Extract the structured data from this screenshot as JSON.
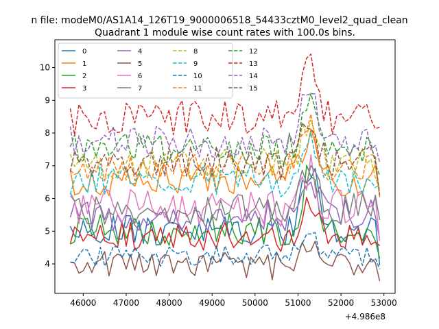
{
  "chart_data": {
    "type": "line",
    "suptitle": "n file: modeM0/AS1A14_126T19_9000006518_54433cztM0_level2_quad_clean",
    "title": "Quadrant 1 module wise count rates with 100.0s bins.",
    "xlabel": "",
    "ylabel": "",
    "x_offset_label": "+4.986e8",
    "x_range": [
      45700,
      52900
    ],
    "x_step": 100,
    "xlim": [
      45340,
      53260
    ],
    "ylim": [
      3.1,
      10.85
    ],
    "xticks": [
      "46000",
      "47000",
      "48000",
      "49000",
      "50000",
      "51000",
      "52000",
      "53000"
    ],
    "yticks": [
      "4",
      "5",
      "6",
      "7",
      "8",
      "9",
      "10"
    ],
    "legend_position": "top-left",
    "grid": false,
    "series": [
      {
        "name": "0",
        "color": "#1f77b4",
        "dash": "solid",
        "base": 5.0,
        "amp": 0.22,
        "peak": 2.2,
        "seed": 1
      },
      {
        "name": "1",
        "color": "#ff7f0e",
        "dash": "solid",
        "base": 6.55,
        "amp": 0.22,
        "peak": 1.6,
        "seed": 2
      },
      {
        "name": "2",
        "color": "#2ca02c",
        "dash": "solid",
        "base": 5.05,
        "amp": 0.22,
        "peak": 1.8,
        "seed": 3
      },
      {
        "name": "3",
        "color": "#d62728",
        "dash": "solid",
        "base": 4.85,
        "amp": 0.2,
        "peak": 1.0,
        "seed": 4
      },
      {
        "name": "4",
        "color": "#9467bd",
        "dash": "solid",
        "base": 5.5,
        "amp": 0.22,
        "peak": 1.4,
        "seed": 5
      },
      {
        "name": "5",
        "color": "#8c564b",
        "dash": "solid",
        "base": 3.95,
        "amp": 0.2,
        "peak": 0.9,
        "seed": 6
      },
      {
        "name": "6",
        "color": "#e377c2",
        "dash": "solid",
        "base": 5.75,
        "amp": 0.25,
        "peak": 1.2,
        "seed": 7
      },
      {
        "name": "7",
        "color": "#7f7f7f",
        "dash": "solid",
        "base": 5.7,
        "amp": 0.22,
        "peak": 1.1,
        "seed": 8
      },
      {
        "name": "8",
        "color": "#bcbd22",
        "dash": "dashed",
        "base": 7.05,
        "amp": 0.22,
        "peak": 1.3,
        "seed": 9
      },
      {
        "name": "9",
        "color": "#17becf",
        "dash": "dashed",
        "base": 6.6,
        "amp": 0.22,
        "peak": 1.5,
        "seed": 10
      },
      {
        "name": "10",
        "color": "#1f77b4",
        "dash": "dashed",
        "base": 4.25,
        "amp": 0.15,
        "peak": 0.8,
        "seed": 11
      },
      {
        "name": "11",
        "color": "#ff7f0e",
        "dash": "dashed",
        "base": 6.95,
        "amp": 0.2,
        "peak": 1.4,
        "seed": 12
      },
      {
        "name": "12",
        "color": "#2ca02c",
        "dash": "dashed",
        "base": 7.5,
        "amp": 0.22,
        "peak": 1.6,
        "seed": 13
      },
      {
        "name": "13",
        "color": "#d62728",
        "dash": "dashed",
        "base": 8.45,
        "amp": 0.25,
        "peak": 2.0,
        "seed": 14
      },
      {
        "name": "14",
        "color": "#9467bd",
        "dash": "dashed",
        "base": 7.75,
        "amp": 0.22,
        "peak": 1.6,
        "seed": 15
      },
      {
        "name": "15",
        "color": "#8c564b",
        "dash": "dashed",
        "base": 7.15,
        "amp": 0.22,
        "peak": 1.2,
        "seed": 16
      }
    ]
  }
}
